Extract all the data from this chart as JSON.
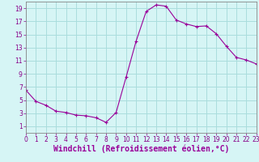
{
  "x": [
    0,
    1,
    2,
    3,
    4,
    5,
    6,
    7,
    8,
    9,
    10,
    11,
    12,
    13,
    14,
    15,
    16,
    17,
    18,
    19,
    20,
    21,
    22,
    23
  ],
  "y": [
    6.5,
    4.8,
    4.2,
    3.3,
    3.1,
    2.7,
    2.6,
    2.3,
    1.6,
    3.1,
    8.5,
    14.0,
    18.5,
    19.5,
    19.3,
    17.2,
    16.6,
    16.2,
    16.3,
    15.1,
    13.2,
    11.5,
    11.1,
    10.5
  ],
  "line_color": "#990099",
  "marker": "+",
  "marker_size": 3,
  "bg_color": "#d6f5f5",
  "grid_color": "#aadddd",
  "axis_color": "#888888",
  "xlabel": "Windchill (Refroidissement éolien,°C)",
  "xlabel_color": "#990099",
  "xlim": [
    0,
    23
  ],
  "ylim": [
    0,
    20
  ],
  "yticks": [
    1,
    3,
    5,
    7,
    9,
    11,
    13,
    15,
    17,
    19
  ],
  "xticks": [
    0,
    1,
    2,
    3,
    4,
    5,
    6,
    7,
    8,
    9,
    10,
    11,
    12,
    13,
    14,
    15,
    16,
    17,
    18,
    19,
    20,
    21,
    22,
    23
  ],
  "tick_fontsize": 5.5,
  "xlabel_fontsize": 7.0
}
